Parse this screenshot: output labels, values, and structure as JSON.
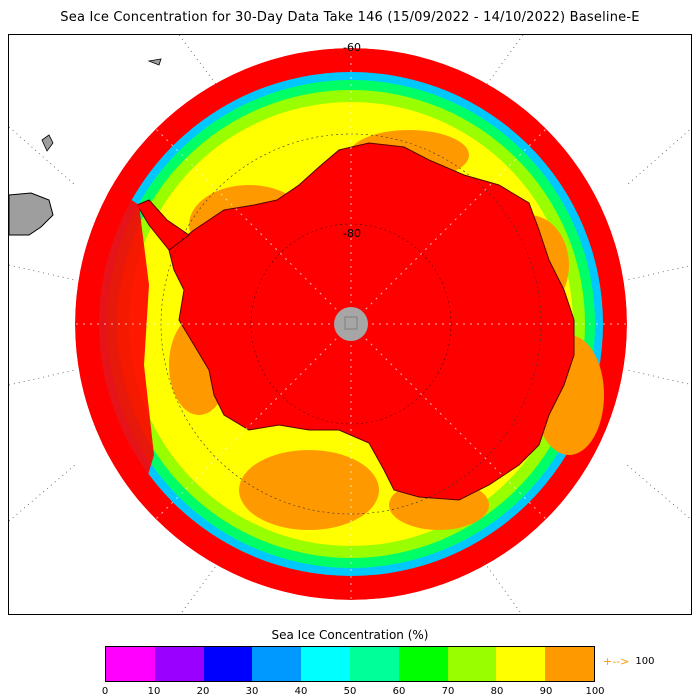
{
  "title": "Sea Ice Concentration for 30-Day Data Take 146 (15/09/2022 - 14/10/2022) Baseline-E",
  "map": {
    "projection": "south-polar-stereographic",
    "latitude_labels": [
      "-60",
      "-80"
    ],
    "pole_mask_color": "#a6a6a6",
    "land_color": "#9e9e9e",
    "ocean_color": "#ffffff"
  },
  "legend": {
    "title": "Sea Ice Concentration (%)",
    "colors": [
      "#ff00ff",
      "#9900ff",
      "#0000ff",
      "#0099ff",
      "#00ffff",
      "#00ff99",
      "#00ff00",
      "#99ff00",
      "#ffff00",
      "#ff9900"
    ],
    "ticks": [
      "0",
      "10",
      "20",
      "30",
      "40",
      "50",
      "60",
      "70",
      "80",
      "90",
      "100"
    ],
    "overflow_label": "100",
    "overflow_arrow": "+-->",
    "overflow_color": "#ff9900"
  }
}
